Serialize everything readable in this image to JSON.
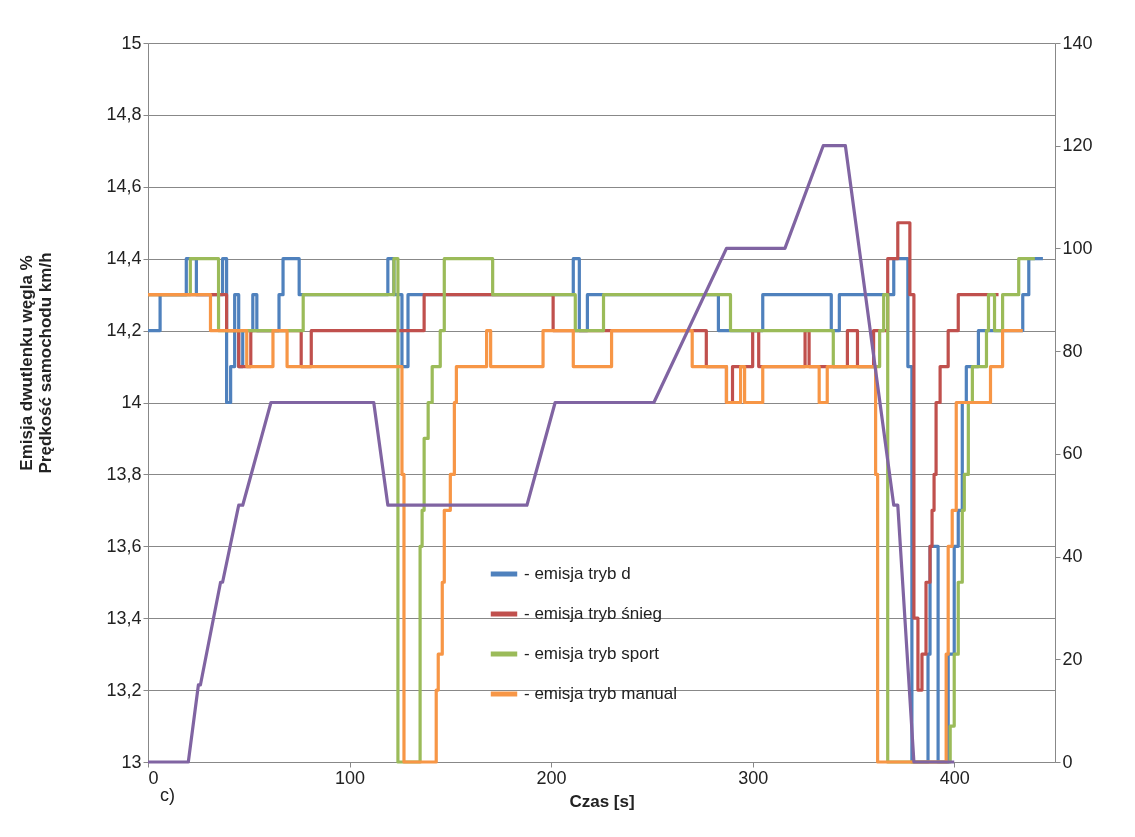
{
  "chart_data": {
    "type": "step",
    "xlabel": "Czas [s]",
    "ylabel": "Emisja dwutlenku węgla  %\nPrędkość samochodu   km/h",
    "xlim": [
      0,
      450
    ],
    "xticks": [
      0,
      100,
      200,
      300,
      400
    ],
    "ylim": [
      13,
      15
    ],
    "yticks": [
      13,
      {
        "value": 13.2,
        "label": "13,2"
      },
      {
        "value": 13.4,
        "label": "13,4"
      },
      {
        "value": 13.6,
        "label": "13,6"
      },
      {
        "value": 13.8,
        "label": "13,8"
      },
      14,
      {
        "value": 14.2,
        "label": "14,2"
      },
      {
        "value": 14.4,
        "label": "14,4"
      },
      {
        "value": 14.6,
        "label": "14,6"
      },
      {
        "value": 14.8,
        "label": "14,8"
      },
      15
    ],
    "y2lim": [
      0,
      140
    ],
    "y2ticks": [
      0,
      20,
      40,
      60,
      80,
      100,
      120,
      140
    ],
    "grid": "y",
    "legend": "bottom",
    "marker": "none",
    "line_style": "solid",
    "annotations": [
      "c)"
    ],
    "series": [
      {
        "name": "- emisja tryb d",
        "color": "#4f81bd",
        "x": [
          0,
          6,
          19,
          24,
          37,
          39,
          41,
          43,
          45,
          47,
          52,
          54,
          65,
          67,
          75,
          119,
          122,
          126,
          129,
          211,
          214,
          218,
          283,
          305,
          339,
          343,
          370,
          377,
          379,
          387,
          388,
          392,
          397,
          400,
          402,
          404,
          406,
          412,
          434,
          437,
          444
        ],
        "values": [
          14.2,
          14.3,
          14.4,
          14.3,
          14.4,
          14.0,
          14.1,
          14.3,
          14.1,
          14.2,
          14.3,
          14.2,
          14.3,
          14.4,
          14.3,
          14.4,
          14.3,
          14.1,
          14.3,
          14.4,
          14.2,
          14.3,
          14.2,
          14.3,
          14.2,
          14.3,
          14.4,
          14.1,
          13.0,
          13.3,
          13.6,
          13.0,
          13.3,
          13.6,
          13.7,
          14.0,
          14.1,
          14.2,
          14.3,
          14.4,
          14.4
        ]
      },
      {
        "name": "- emisja tryb śnieg",
        "color": "#c0504d",
        "x": [
          0,
          39,
          45,
          51,
          76,
          81,
          137,
          201,
          277,
          287,
          290,
          300,
          303,
          326,
          328,
          347,
          352,
          360,
          367,
          372,
          378,
          380,
          382,
          384,
          386,
          388,
          389,
          390,
          391,
          393,
          397,
          402,
          422
        ],
        "values": [
          14.3,
          14.2,
          14.1,
          14.2,
          14.1,
          14.2,
          14.3,
          14.2,
          14.1,
          14.0,
          14.1,
          14.2,
          14.1,
          14.2,
          14.1,
          14.2,
          14.1,
          14.2,
          14.4,
          14.5,
          14.3,
          13.4,
          13.2,
          13.3,
          13.5,
          13.6,
          13.7,
          13.8,
          14.0,
          14.1,
          14.2,
          14.3,
          14.3
        ]
      },
      {
        "name": "- emisja tryb sport",
        "color": "#9bbb59",
        "x": [
          0,
          21,
          35,
          77,
          122,
          124,
          135,
          136,
          137,
          139,
          141,
          145,
          147,
          171,
          212,
          226,
          289,
          340,
          363,
          365,
          367,
          398,
          400,
          402,
          404,
          405,
          407,
          409,
          416,
          417,
          420,
          424,
          432,
          440
        ],
        "values": [
          14.3,
          14.4,
          14.2,
          14.3,
          14.4,
          13.0,
          13.6,
          13.7,
          13.9,
          14.0,
          14.1,
          14.2,
          14.4,
          14.3,
          14.2,
          14.3,
          14.2,
          14.1,
          14.2,
          14.3,
          13.0,
          13.1,
          13.3,
          13.5,
          13.7,
          13.8,
          14.0,
          14.1,
          14.2,
          14.3,
          14.2,
          14.3,
          14.4,
          14.4
        ]
      },
      {
        "name": "- emisja tryb manual",
        "color": "#f79646",
        "x": [
          0,
          31,
          49,
          62,
          69,
          126,
          127,
          143,
          144,
          146,
          147,
          150,
          152,
          153,
          168,
          170,
          196,
          211,
          230,
          270,
          287,
          294,
          296,
          305,
          333,
          337,
          361,
          362,
          396,
          397,
          399,
          401,
          418,
          424,
          434
        ],
        "values": [
          14.3,
          14.2,
          14.1,
          14.2,
          14.1,
          13.8,
          13.0,
          13.2,
          13.3,
          13.5,
          13.7,
          13.8,
          14.0,
          14.1,
          14.2,
          14.1,
          14.2,
          14.1,
          14.2,
          14.1,
          14.0,
          14.1,
          14.0,
          14.1,
          14.0,
          14.1,
          13.8,
          13.0,
          13.3,
          13.6,
          13.7,
          14.0,
          14.1,
          14.2,
          14.2
        ]
      },
      {
        "type": "line",
        "axis": "y2",
        "color": "#8064a2",
        "x": [
          0,
          20,
          25,
          26,
          36,
          37,
          45,
          47,
          61,
          112,
          119,
          188,
          202,
          251,
          287,
          316,
          335,
          346,
          370,
          372,
          380,
          400
        ],
        "values": [
          0,
          0,
          15,
          15,
          35,
          35,
          50,
          50,
          70,
          70,
          50,
          50,
          70,
          70,
          100,
          100,
          120,
          120,
          50,
          50,
          0,
          0
        ]
      }
    ]
  }
}
